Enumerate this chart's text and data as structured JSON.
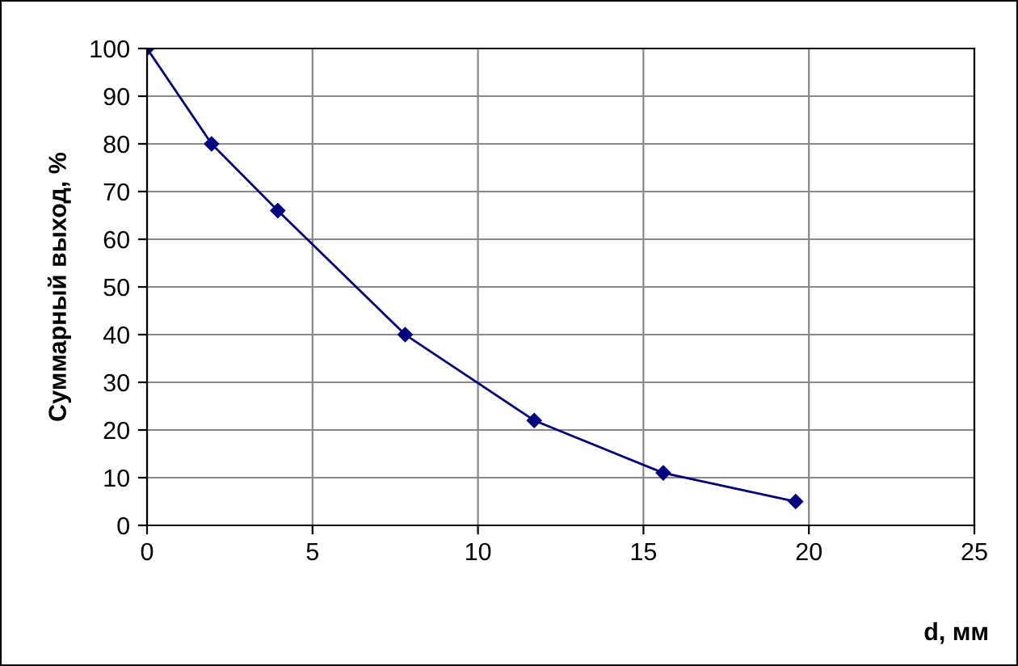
{
  "chart_data": {
    "type": "line",
    "xlabel": "d, мм",
    "ylabel": "Суммарный выход, %",
    "series": [
      {
        "color": "#000080",
        "x": [
          0,
          1.95,
          3.95,
          7.8,
          11.7,
          15.6,
          19.6
        ],
        "values": [
          100,
          80,
          66,
          40,
          22,
          11,
          5
        ]
      }
    ],
    "xlim": [
      0,
      25
    ],
    "xticks": [
      0,
      5,
      10,
      15,
      20,
      25
    ],
    "ylim": [
      0,
      100
    ],
    "yticks": [
      0,
      10,
      20,
      30,
      40,
      50,
      60,
      70,
      80,
      90,
      100
    ],
    "grid": true,
    "marker": "diamond",
    "line_style": "solid",
    "legend": false
  }
}
